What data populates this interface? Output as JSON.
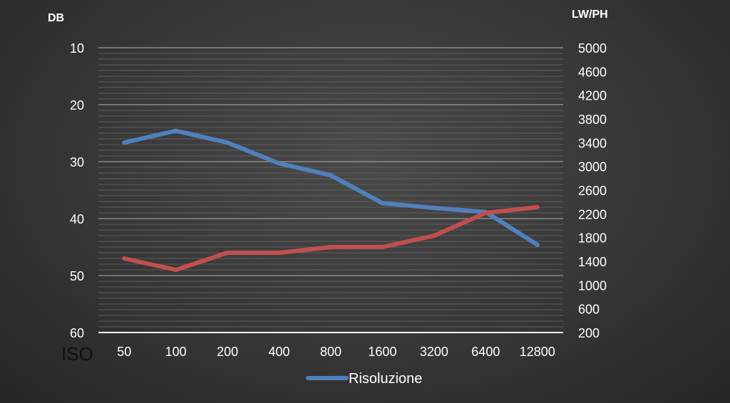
{
  "chart_data": {
    "type": "line",
    "categories": [
      "50",
      "100",
      "200",
      "400",
      "800",
      "1600",
      "3200",
      "6400",
      "12800"
    ],
    "x_axis_extra_label": "ISO",
    "left_axis": {
      "title": "DB",
      "min": 10,
      "max": 60,
      "ticks": [
        "10",
        "20",
        "30",
        "40",
        "50",
        "60"
      ],
      "reversed": true
    },
    "right_axis": {
      "title": "LW/PH",
      "min": 200,
      "max": 5000,
      "ticks": [
        "200",
        "600",
        "1000",
        "1400",
        "1800",
        "2200",
        "2600",
        "3000",
        "3400",
        "3800",
        "4200",
        "4600",
        "5000"
      ]
    },
    "series": [
      {
        "name": "Risoluzione",
        "axis": "right",
        "color": "#4f81bd",
        "values": [
          3400,
          3600,
          3400,
          3050,
          2850,
          2380,
          2300,
          2230,
          1680
        ]
      },
      {
        "name": "",
        "axis": "left",
        "color": "#c0504d",
        "values": [
          47,
          49,
          46,
          46,
          45,
          45,
          43,
          39,
          38
        ]
      }
    ],
    "grid": true,
    "legend": "bottom"
  }
}
